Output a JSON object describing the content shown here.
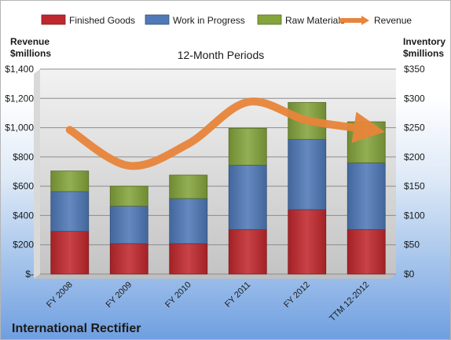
{
  "chart_data": {
    "type": "bar",
    "stacked": true,
    "subtitle": "12-Month Periods",
    "footer_title": "International Rectifier",
    "categories": [
      "FY 2008",
      "FY 2009",
      "FY 2010",
      "FY 2011",
      "FY 2012",
      "TTM 12-2012"
    ],
    "series": [
      {
        "name": "Finished Goods",
        "axis": "right",
        "color": "#c0282d",
        "values": [
          73,
          52,
          52,
          76,
          110,
          76
        ]
      },
      {
        "name": "Work in Progress",
        "axis": "right",
        "color": "#4f79b7",
        "values": [
          68,
          64,
          77,
          110,
          120,
          114
        ]
      },
      {
        "name": "Raw Materials",
        "axis": "right",
        "color": "#84a43c",
        "values": [
          35,
          34,
          40,
          63,
          63,
          70
        ]
      },
      {
        "name": "Revenue",
        "type": "line",
        "axis": "left",
        "color": "#e8853a",
        "values": [
          985,
          740,
          890,
          1175,
          1050,
          990
        ]
      }
    ],
    "left_axis": {
      "label_line1": "Revenue",
      "label_line2": "$millions",
      "ylim": [
        0,
        1400
      ],
      "ticks": [
        "$-",
        "$200",
        "$400",
        "$600",
        "$800",
        "$1,000",
        "$1,200",
        "$1,400"
      ]
    },
    "right_axis": {
      "label_line1": "Inventory",
      "label_line2": "$millions",
      "ylim": [
        0,
        350
      ],
      "ticks": [
        "$0",
        "$50",
        "$100",
        "$150",
        "$200",
        "$250",
        "$300",
        "$350"
      ]
    },
    "grid": true,
    "legend_position": "top"
  }
}
